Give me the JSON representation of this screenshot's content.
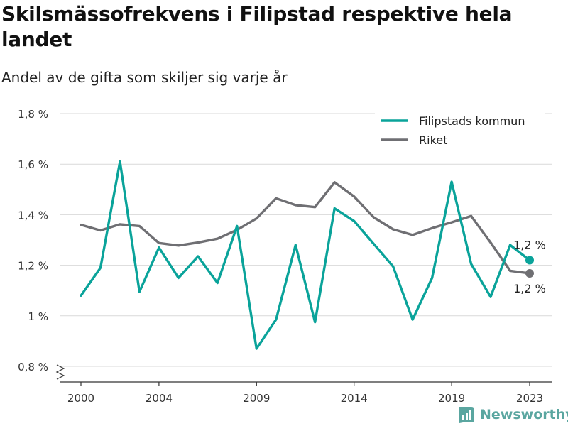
{
  "title": "Skilsmässofrekvens i Filipstad respektive hela landet",
  "subtitle": "Andel av de gifta som skiljer sig varje år",
  "brand": "Newsworthy",
  "chart_data": {
    "type": "line",
    "x": [
      2000,
      2001,
      2002,
      2003,
      2004,
      2005,
      2006,
      2007,
      2008,
      2009,
      2010,
      2011,
      2012,
      2013,
      2014,
      2015,
      2016,
      2017,
      2018,
      2019,
      2020,
      2021,
      2022,
      2023
    ],
    "series": [
      {
        "name": "Filipstads kommun",
        "color": "#0aa39a",
        "values": [
          1.08,
          1.19,
          1.61,
          1.095,
          1.27,
          1.15,
          1.235,
          1.13,
          1.355,
          0.87,
          0.985,
          1.28,
          0.975,
          1.425,
          1.375,
          1.285,
          1.195,
          0.985,
          1.15,
          1.53,
          1.205,
          1.075,
          1.28,
          1.22
        ],
        "end_label": "1,2 %"
      },
      {
        "name": "Riket",
        "color": "#6f6f73",
        "values": [
          1.36,
          1.338,
          1.362,
          1.355,
          1.288,
          1.278,
          1.29,
          1.305,
          1.34,
          1.385,
          1.465,
          1.438,
          1.43,
          1.528,
          1.472,
          1.39,
          1.342,
          1.32,
          1.347,
          1.37,
          1.395,
          1.29,
          1.178,
          1.168
        ],
        "end_label": "1,2 %"
      }
    ],
    "ylim": [
      0.8,
      1.8
    ],
    "yticks": [
      0.8,
      1.0,
      1.2,
      1.4,
      1.6,
      1.8
    ],
    "ytick_labels": [
      "0,8 %",
      "1 %",
      "1,2 %",
      "1,4 %",
      "1,6 %",
      "1,8 %"
    ],
    "xticks": [
      2000,
      2004,
      2009,
      2014,
      2019,
      2023
    ],
    "xtick_labels": [
      "2000",
      "2004",
      "2009",
      "2014",
      "2019",
      "2023"
    ],
    "grid": "horizontal",
    "legend_position": "top-right",
    "axis_break": true,
    "xlabel": "",
    "ylabel": ""
  }
}
